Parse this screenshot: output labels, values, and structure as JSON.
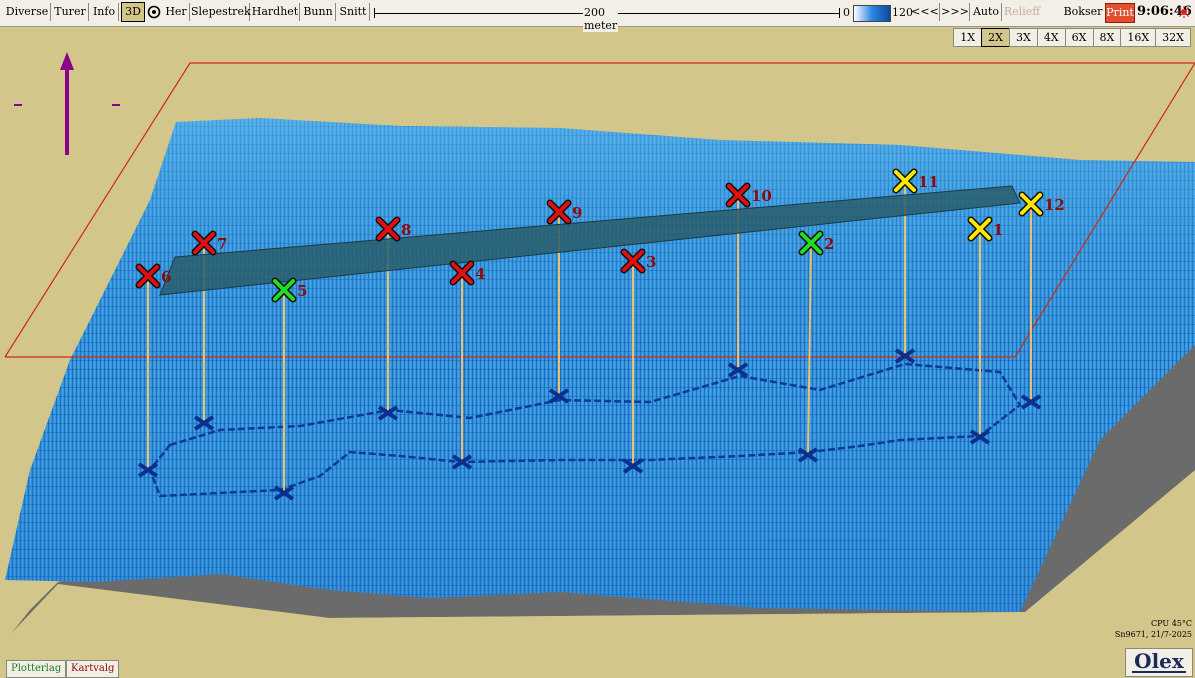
{
  "toolbar": {
    "items": [
      "Diverse",
      "Turer",
      "Info",
      "3D",
      "Her",
      "Slepestrek",
      "Hardhet",
      "Bunn",
      "Snitt"
    ],
    "scale_label": "200 meter",
    "depth_min": "0",
    "depth_max": "120",
    "btn_prev": "<<<",
    "btn_next": ">>>",
    "btn_auto": "Auto",
    "btn_relieff": "Relieff",
    "btn_bokser": "Bokser",
    "btn_print": "Print",
    "clock": "9:06:46"
  },
  "zoom": {
    "options": [
      "1X",
      "2X",
      "3X",
      "4X",
      "6X",
      "8X",
      "16X",
      "32X"
    ],
    "active": "2X"
  },
  "colors": {
    "background": "#D3C68A",
    "sea": "#2E8FD8",
    "marker_red": "#E01010",
    "marker_green": "#22DD22",
    "marker_yellow": "#FFE800",
    "label": "#8B0A0A",
    "compass": "#8B008B"
  },
  "icons": {
    "compass": "north-arrow-icon",
    "sun": "sun-icon",
    "target": "target-icon"
  },
  "waypoints": [
    {
      "id": "1",
      "label": "1",
      "status": "yellow"
    },
    {
      "id": "2",
      "label": "2",
      "status": "green"
    },
    {
      "id": "3",
      "label": "3",
      "status": "red"
    },
    {
      "id": "4",
      "label": "4",
      "status": "red"
    },
    {
      "id": "5",
      "label": "5",
      "status": "green"
    },
    {
      "id": "6",
      "label": "6",
      "status": "red"
    },
    {
      "id": "7",
      "label": "7",
      "status": "red"
    },
    {
      "id": "8",
      "label": "8",
      "status": "red"
    },
    {
      "id": "9",
      "label": "9",
      "status": "red"
    },
    {
      "id": "10",
      "label": "10",
      "status": "red"
    },
    {
      "id": "11",
      "label": "11",
      "status": "yellow"
    },
    {
      "id": "12",
      "label": "12",
      "status": "yellow"
    }
  ],
  "bottom": {
    "tab_plotterlag": "Plotterlag",
    "tab_kartvalg": "Kartvalg",
    "cpu": "CPU 45°C",
    "serial": "Sn9671, 21/7-2025",
    "logo": "Olex"
  }
}
